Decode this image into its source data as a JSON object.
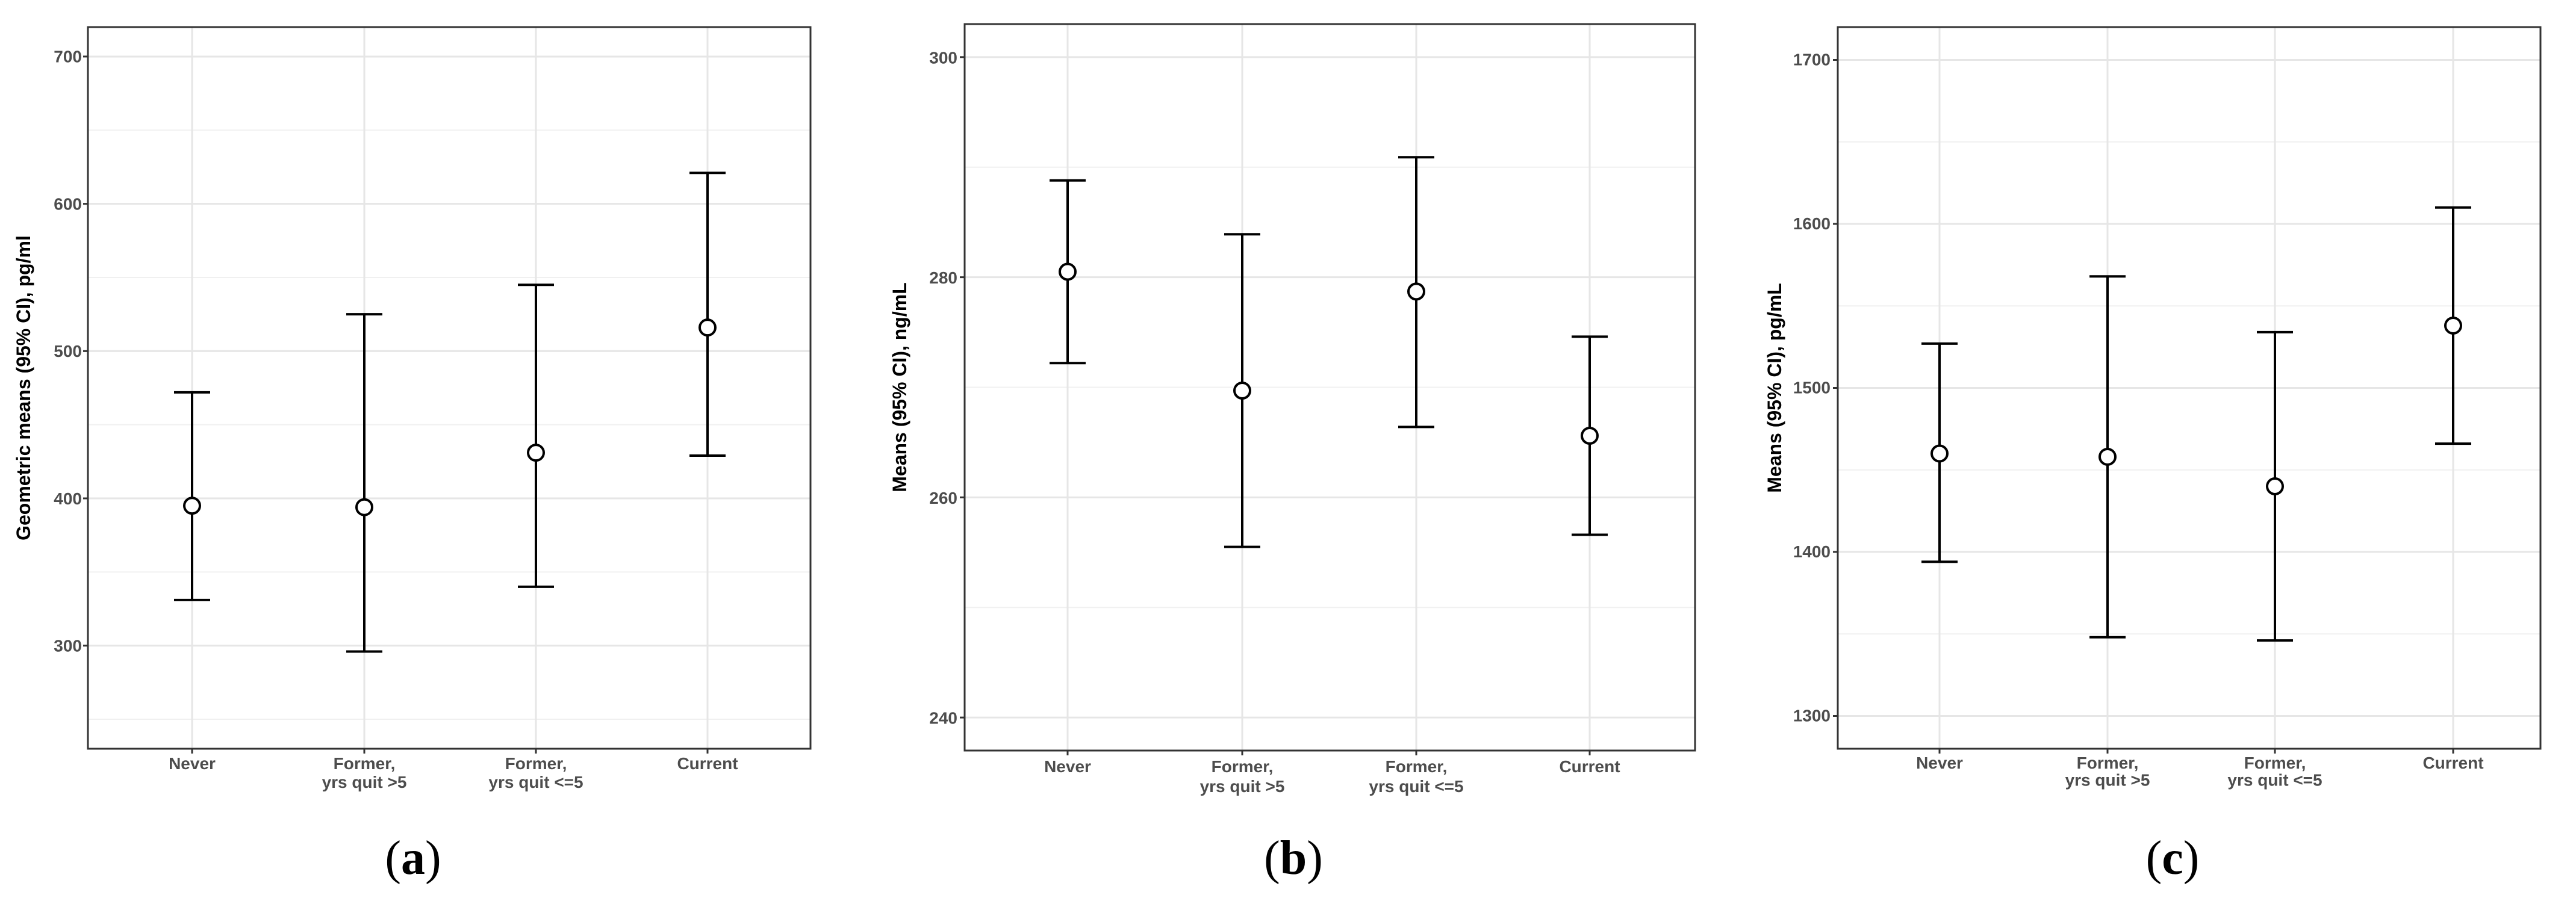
{
  "chart_data": [
    {
      "type": "errorbar",
      "panel_label": "a",
      "categories": [
        "Never",
        "Former,\nyrs quit >5",
        "Former,\nyrs quit <=5",
        "Current"
      ],
      "ylabel": "Geometric means (95% CI), pg/ml",
      "ylim": [
        230,
        720
      ],
      "yticks": [
        300,
        400,
        500,
        600,
        700
      ],
      "ytick_labels": [
        "300",
        "400",
        "500",
        "600",
        "700"
      ],
      "grid": true,
      "series": [
        {
          "points": [
            {
              "mean": 395,
              "lower": 331,
              "upper": 472
            },
            {
              "mean": 394,
              "lower": 296,
              "upper": 525
            },
            {
              "mean": 431,
              "lower": 340,
              "upper": 545
            },
            {
              "mean": 516,
              "lower": 429,
              "upper": 621
            }
          ]
        }
      ]
    },
    {
      "type": "errorbar",
      "panel_label": "b",
      "categories": [
        "Never",
        "Former,\nyrs quit >5",
        "Former,\nyrs quit <=5",
        "Current"
      ],
      "ylabel": "Means (95% CI), ng/mL",
      "ylim": [
        237,
        303
      ],
      "yticks": [
        240,
        260,
        280,
        300
      ],
      "ytick_labels": [
        "240",
        "260",
        "280",
        "300"
      ],
      "grid": true,
      "series": [
        {
          "points": [
            {
              "mean": 280.5,
              "lower": 272.2,
              "upper": 288.8
            },
            {
              "mean": 269.7,
              "lower": 255.5,
              "upper": 283.9
            },
            {
              "mean": 278.7,
              "lower": 266.4,
              "upper": 290.9
            },
            {
              "mean": 265.6,
              "lower": 256.6,
              "upper": 274.6
            }
          ]
        }
      ]
    },
    {
      "type": "errorbar",
      "panel_label": "c",
      "categories": [
        "Never",
        "Former,\nyrs quit >5",
        "Former,\nyrs quit <=5",
        "Current"
      ],
      "ylabel": "Means (95% CI), pg/mL",
      "ylim": [
        1280,
        1720
      ],
      "yticks": [
        1300,
        1400,
        1500,
        1600,
        1700
      ],
      "ytick_labels": [
        "1300",
        "1400",
        "1500",
        "1600",
        "1700"
      ],
      "grid": true,
      "series": [
        {
          "points": [
            {
              "mean": 1460,
              "lower": 1394,
              "upper": 1527
            },
            {
              "mean": 1458,
              "lower": 1348,
              "upper": 1568
            },
            {
              "mean": 1440,
              "lower": 1346,
              "upper": 1534
            },
            {
              "mean": 1538,
              "lower": 1466,
              "upper": 1610
            }
          ]
        }
      ]
    }
  ]
}
